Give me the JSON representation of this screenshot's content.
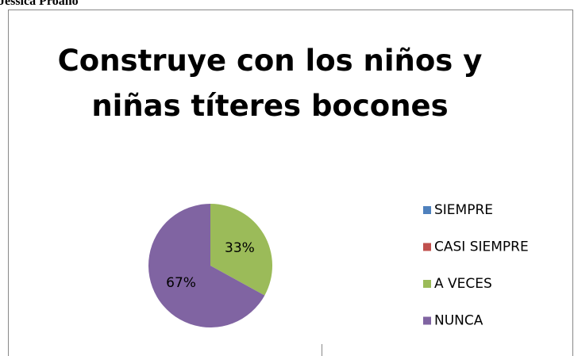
{
  "caption": "Jessica Proaño",
  "chart_data": {
    "type": "pie",
    "title": "Construye con los niños y niñas títeres bocones",
    "categories": [
      "SIEMPRE",
      "CASI SIEMPRE",
      "A VECES",
      "NUNCA"
    ],
    "values": [
      0,
      0,
      33,
      67
    ],
    "value_labels": [
      null,
      null,
      "33%",
      "67%"
    ],
    "colors": [
      "#4f81bd",
      "#c0504d",
      "#9bbb59",
      "#8064a2"
    ],
    "legend": "right"
  }
}
